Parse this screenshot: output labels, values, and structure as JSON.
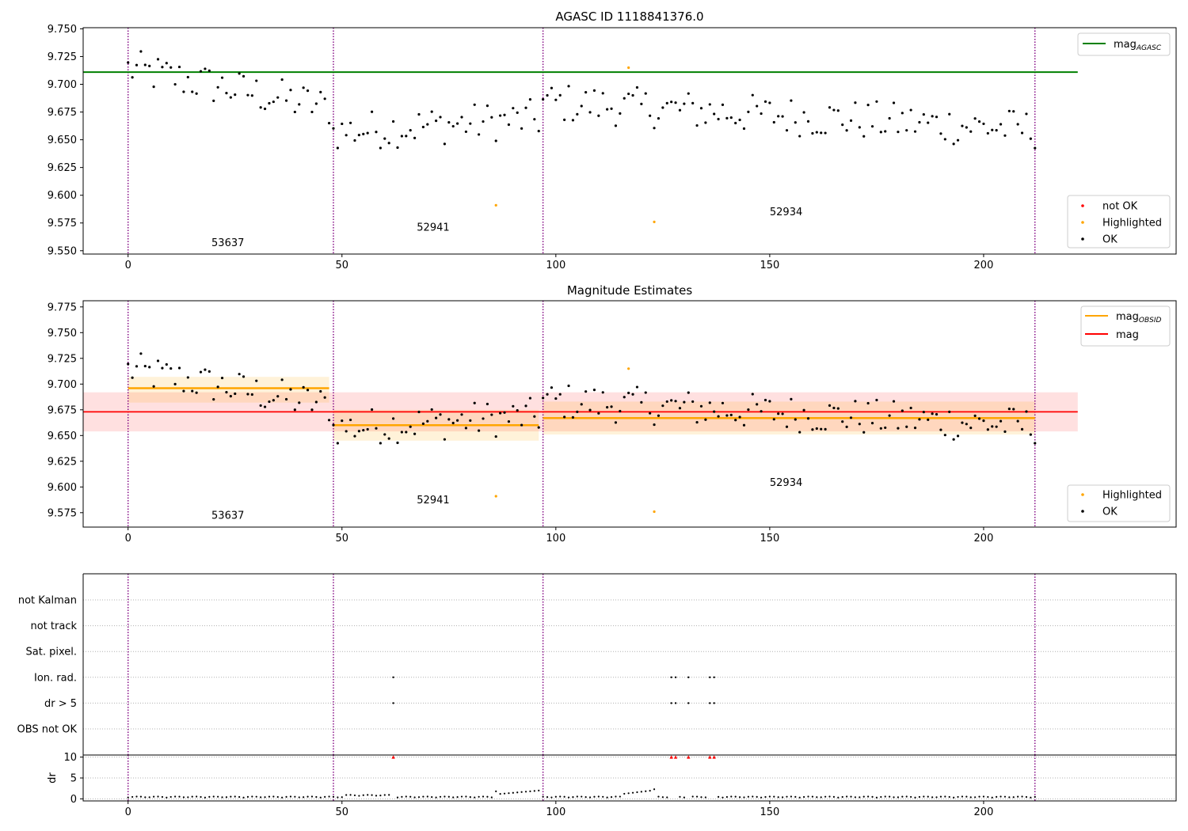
{
  "colors": {
    "ok": "#000000",
    "highlighted": "#ffa500",
    "not_ok": "#ff0000",
    "agasc_line": "#008000",
    "obsid_line": "#ffa500",
    "mag_line": "#ff0000",
    "obs_boundary": "#800080"
  },
  "chart_data": [
    {
      "type": "scatter",
      "title": "AGASC ID 1118841376.0",
      "xlim": [
        -10.5,
        245
      ],
      "ylim": [
        9.547,
        9.751
      ],
      "xticks": [
        0,
        50,
        100,
        150,
        200
      ],
      "yticks": [
        9.55,
        9.575,
        9.6,
        9.625,
        9.65,
        9.675,
        9.7,
        9.725,
        9.75
      ],
      "ytick_labels": [
        "9.550",
        "9.575",
        "9.600",
        "9.625",
        "9.650",
        "9.675",
        "9.700",
        "9.725",
        "9.750"
      ],
      "obs_boundaries": [
        0,
        48,
        97,
        212
      ],
      "obsid_labels": [
        {
          "text": "53637",
          "x": 19.5,
          "y": 9.554
        },
        {
          "text": "52941",
          "x": 67.5,
          "y": 9.568
        },
        {
          "text": "52934",
          "x": 150,
          "y": 9.582
        }
      ],
      "mag_agasc": {
        "value": 9.711,
        "x": [
          -10.5,
          222
        ]
      },
      "legend_upper": [
        {
          "label": "mag",
          "sub": "AGASC"
        }
      ],
      "legend_lower": [
        {
          "label": "not OK",
          "kind": "not_ok"
        },
        {
          "label": "Highlighted",
          "kind": "highlighted"
        },
        {
          "label": "OK",
          "kind": "ok"
        }
      ],
      "highlighted_points": [
        [
          86,
          9.591
        ],
        [
          117,
          9.715
        ],
        [
          123,
          9.576
        ]
      ]
    },
    {
      "type": "scatter",
      "title": "Magnitude Estimates",
      "xlim": [
        -10.5,
        245
      ],
      "ylim": [
        9.561,
        9.781
      ],
      "xticks": [
        0,
        50,
        100,
        150,
        200
      ],
      "yticks": [
        9.575,
        9.6,
        9.625,
        9.65,
        9.675,
        9.7,
        9.725,
        9.75,
        9.775
      ],
      "ytick_labels": [
        "9.575",
        "9.600",
        "9.625",
        "9.650",
        "9.675",
        "9.700",
        "9.725",
        "9.750",
        "9.775"
      ],
      "obs_boundaries": [
        0,
        48,
        97,
        212
      ],
      "obsid_labels": [
        {
          "text": "53637",
          "x": 19.5,
          "y": 9.569
        },
        {
          "text": "52941",
          "x": 67.5,
          "y": 9.584
        },
        {
          "text": "52934",
          "x": 150,
          "y": 9.601
        }
      ],
      "mag": {
        "value": 9.673,
        "lo": 9.654,
        "hi": 9.692,
        "x": [
          -10.5,
          222
        ]
      },
      "mag_obsid": [
        {
          "x0": 0,
          "x1": 47,
          "value": 9.696,
          "lo": 9.682,
          "hi": 9.707
        },
        {
          "x0": 48,
          "x1": 96,
          "value": 9.66,
          "lo": 9.645,
          "hi": 9.675
        },
        {
          "x0": 97,
          "x1": 212,
          "value": 9.667,
          "lo": 9.651,
          "hi": 9.683
        }
      ],
      "legend_upper": [
        {
          "label": "mag",
          "sub": "OBSID",
          "kind": "obsid"
        },
        {
          "label": "mag",
          "sub": "",
          "kind": "mag"
        }
      ],
      "legend_lower": [
        {
          "label": "Highlighted",
          "kind": "highlighted"
        },
        {
          "label": "OK",
          "kind": "ok"
        }
      ],
      "highlighted_points": [
        [
          86,
          9.591
        ],
        [
          117,
          9.715
        ],
        [
          123,
          9.576
        ]
      ]
    },
    {
      "type": "scatter",
      "title": "",
      "xlim": [
        -10.5,
        245
      ],
      "xticks": [
        0,
        50,
        100,
        150,
        200
      ],
      "obs_boundaries": [
        0,
        48,
        97,
        212
      ],
      "flag_categories": [
        "not Kalman",
        "not track",
        "Sat. pixel.",
        "Ion. rad.",
        "dr > 5",
        "OBS not OK"
      ],
      "flag_points": {
        "Ion. rad.": [
          62,
          127,
          128,
          131,
          136,
          137
        ],
        "dr > 5": [
          62,
          127,
          128,
          131,
          136,
          137
        ]
      },
      "dr": {
        "ylabel": "dr",
        "ylim": [
          -0.5,
          10.5
        ],
        "yticks": [
          0,
          5,
          10
        ],
        "ytick_labels": [
          "0",
          "5",
          "10"
        ],
        "capped_points": [
          62,
          127,
          128,
          131,
          136,
          137
        ]
      }
    }
  ]
}
